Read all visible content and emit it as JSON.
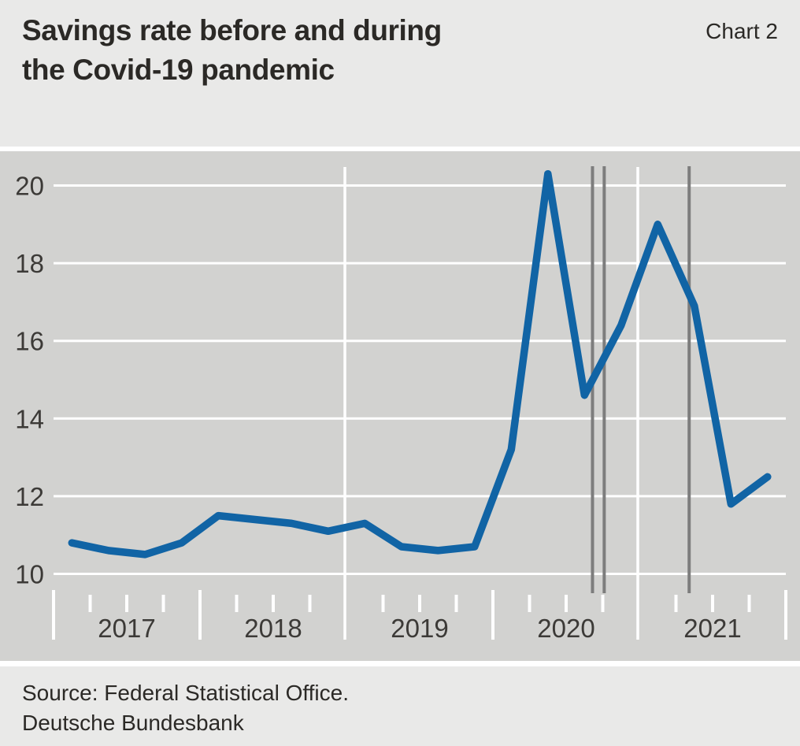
{
  "header": {
    "title_line1": "Savings rate before and during",
    "title_line2": "the Covid-19 pandemic",
    "chart_label": "Chart 2"
  },
  "footer": {
    "source": "Source: Federal Statistical Office.",
    "institution": "Deutsche Bundesbank"
  },
  "colors": {
    "line": "#1164a5",
    "plot_bg": "#d2d2d0",
    "panel_bg": "#e9e9e8",
    "grid": "#ffffff",
    "event_line": "#7d7d7d",
    "axis_text": "#3c3a37",
    "title_text": "#2b2926"
  },
  "chart_data": {
    "type": "line",
    "title": "Savings rate before and during the Covid-19 pandemic",
    "series_name": "Savings rate, %",
    "quarters": [
      "2017 Q1",
      "2017 Q2",
      "2017 Q3",
      "2017 Q4",
      "2018 Q1",
      "2018 Q2",
      "2018 Q3",
      "2018 Q4",
      "2019 Q1",
      "2019 Q2",
      "2019 Q3",
      "2019 Q4",
      "2020 Q1",
      "2020 Q2",
      "2020 Q3",
      "2020 Q4",
      "2021 Q1",
      "2021 Q2",
      "2021 Q3",
      "2021 Q4"
    ],
    "values": [
      10.8,
      10.6,
      10.5,
      10.8,
      11.5,
      11.4,
      11.3,
      11.1,
      11.3,
      10.7,
      10.6,
      10.7,
      13.2,
      20.3,
      14.6,
      16.4,
      19.0,
      16.9,
      11.8,
      12.5
    ],
    "year_labels": [
      "2017",
      "2018",
      "2019",
      "2020",
      "2021"
    ],
    "x_range": [
      2017,
      2022
    ],
    "y_ticks": [
      10,
      12,
      14,
      16,
      18,
      20
    ],
    "ylim": [
      9.5,
      20.5
    ],
    "grid": true,
    "legend_position": "none",
    "vertical_gridline_years": [
      2019,
      2021
    ],
    "event_marker_positions": [
      2020.68,
      2020.76,
      2021.34
    ]
  }
}
